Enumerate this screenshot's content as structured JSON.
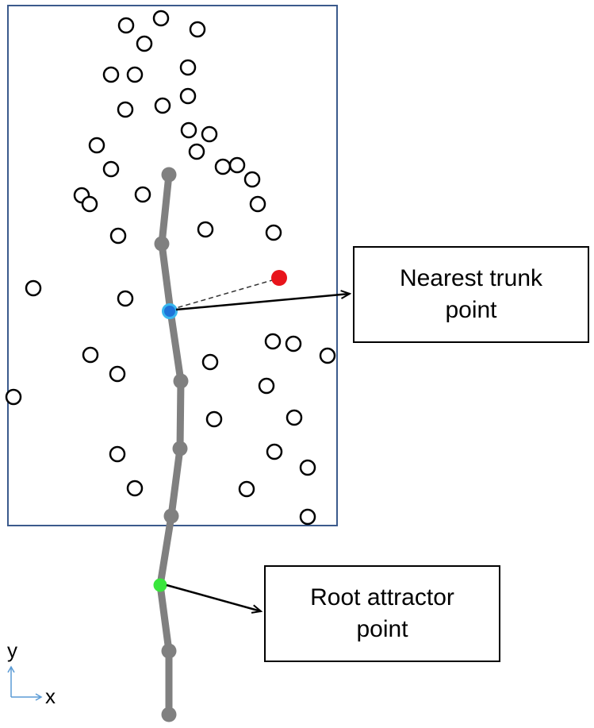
{
  "colors": {
    "region_border": "#3b5a8c",
    "trunk": "#808080",
    "attraction_point_stroke": "#000000",
    "attraction_point_fill": "#ffffff",
    "highlight_point": "#e8141b",
    "nearest_trunk_point": "#1e73d8",
    "nearest_trunk_ring": "#38b6ee",
    "root_attractor_point": "#39e63c",
    "axis_indicator": "#5b9bd5"
  },
  "labels": {
    "nearest_line1": "Nearest trunk",
    "nearest_line2": "point",
    "root_line1": "Root attractor",
    "root_line2": "point"
  },
  "axes": {
    "y": "y",
    "x": "x"
  }
}
